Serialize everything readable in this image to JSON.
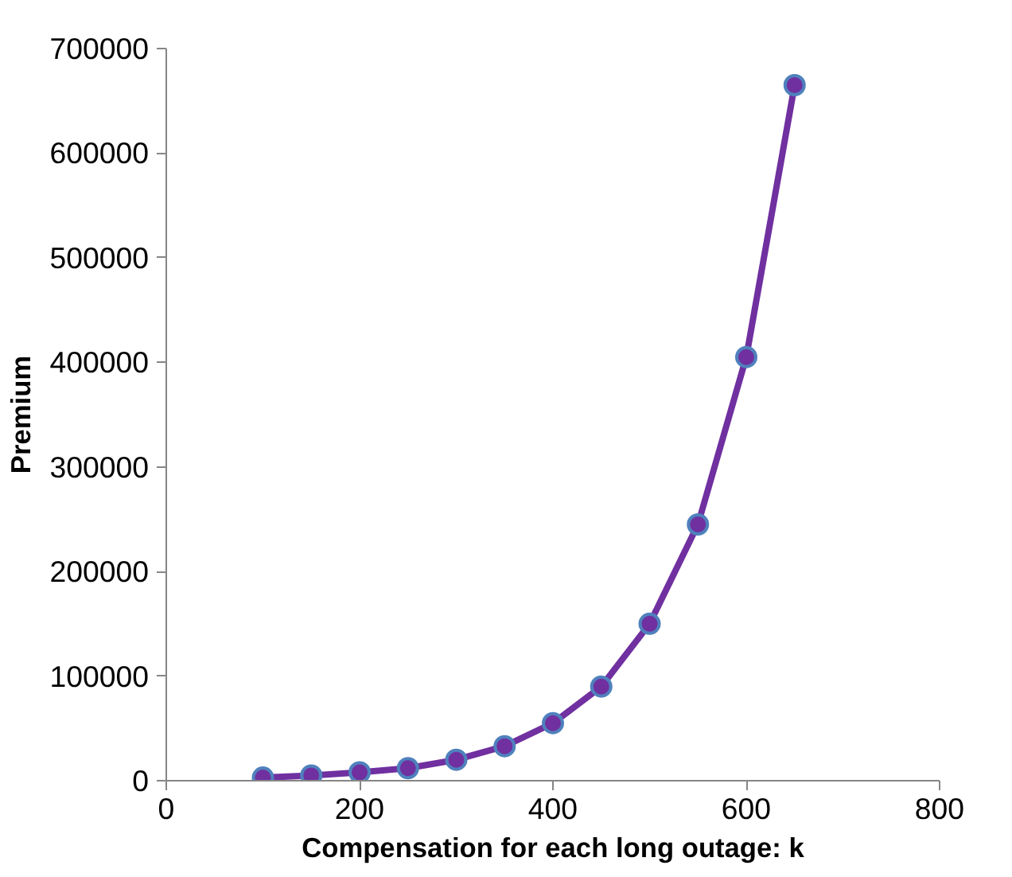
{
  "chart_data": {
    "type": "line",
    "xlabel": "Compensation for each long outage: k",
    "ylabel": "Premium",
    "x": [
      100,
      150,
      200,
      250,
      300,
      350,
      400,
      450,
      500,
      550,
      600,
      650
    ],
    "series": [
      {
        "color": "#7030a0",
        "values": [
          3000,
          5000,
          8000,
          12000,
          20000,
          33000,
          55000,
          90000,
          150000,
          245000,
          405000,
          665000
        ]
      }
    ],
    "xlim": [
      0,
      800
    ],
    "xticks": [
      0,
      200,
      400,
      600,
      800
    ],
    "ylim": [
      0,
      700000
    ],
    "yticks": [
      0,
      100000,
      200000,
      300000,
      400000,
      500000,
      600000,
      700000
    ],
    "marker": "circle",
    "line_style": "solid",
    "grid": false
  }
}
